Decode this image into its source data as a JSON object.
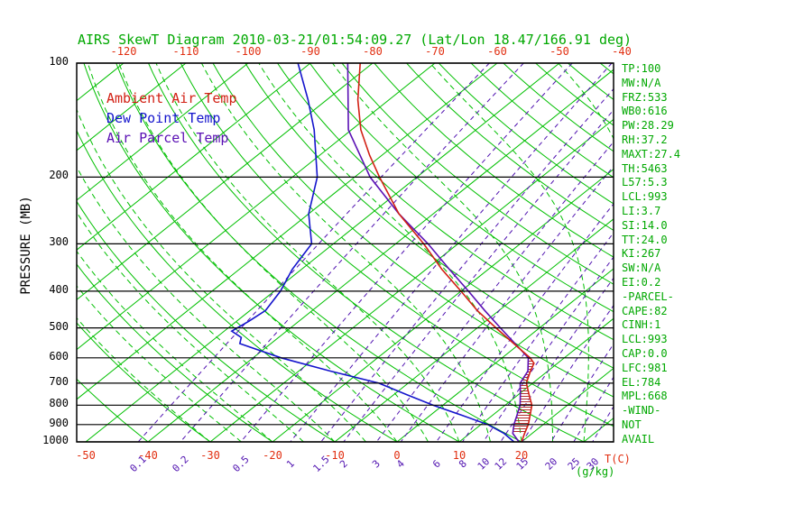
{
  "legend": {
    "ambient": "Ambient Air Temp",
    "dew": "Dew Point Temp",
    "parcel": "Air Parcel Temp"
  },
  "axis_units": {
    "temp": "T(C)",
    "mixing": "(g/kg)"
  },
  "stats": [
    "TP:100",
    "MW:N/A",
    "FRZ:533",
    "WB0:616",
    "PW:28.29",
    "RH:37.2",
    "MAXT:27.4",
    "TH:5463",
    "L57:5.3",
    "LCL:993",
    "LI:3.7",
    "SI:14.0",
    "TT:24.0",
    "KI:267",
    "SW:N/A",
    "EI:0.2",
    "-PARCEL-",
    "CAPE:82",
    "CINH:1",
    "LCL:993",
    "CAP:0.0",
    "LFC:981",
    "EL:784",
    "MPL:668",
    "-WIND-",
    "NOT",
    "AVAIL"
  ],
  "chart_data": {
    "type": "line",
    "variant": "skew-t-log-p",
    "title": "AIRS SkewT Diagram 2010-03-21/01:54:09.27 (Lat/Lon 18.47/166.91 deg)",
    "pressure_axis": {
      "label": "PRESSURE (MB)",
      "scale": "log",
      "range": [
        100,
        1000
      ],
      "ticks": [
        100,
        200,
        300,
        400,
        500,
        600,
        700,
        800,
        900,
        1000
      ]
    },
    "temp_axis": {
      "label": "T(C)",
      "top_ticks": [
        -120,
        -110,
        -100,
        -90,
        -80,
        -70,
        -60,
        -50,
        -40
      ],
      "bottom_ticks": [
        -50,
        -40,
        -30,
        -20,
        -10,
        0,
        10,
        20
      ]
    },
    "mixing_ratio_axis": {
      "label": "(g/kg)",
      "values": [
        0.1,
        0.2,
        0.5,
        1,
        1.5,
        2,
        3,
        4,
        6,
        8,
        10,
        12,
        15,
        20,
        25,
        30
      ]
    },
    "grid": {
      "isotherms": {
        "min": -120,
        "max": 40,
        "step": 10
      },
      "dry_adiabats": {
        "min": -40,
        "max": 190,
        "step": 10
      },
      "moist_adiabats": {
        "min": -30,
        "max": 40,
        "step": 5
      }
    },
    "colors": {
      "background": "#ffffff",
      "frame": "#000000",
      "grid": "#00bf00",
      "text_green": "#00a800",
      "text_red": "#e12e10",
      "text_black": "#000000",
      "ambient": "#d22014",
      "dew": "#1414cc",
      "parcel": "#5a10b4",
      "mixing": "#5012b0",
      "hatch": "#b23030"
    },
    "series": [
      {
        "key": "parcel",
        "name": "Air Parcel Temp",
        "color": "#5a10b4",
        "points": [
          [
            100,
            -84
          ],
          [
            150,
            -70.5
          ],
          [
            200,
            -57.5
          ],
          [
            250,
            -45.5
          ],
          [
            300,
            -34.8
          ],
          [
            350,
            -26.3
          ],
          [
            400,
            -18.8
          ],
          [
            450,
            -12.3
          ],
          [
            500,
            -6.3
          ],
          [
            550,
            -0.8
          ],
          [
            600,
            4.2
          ],
          [
            650,
            6.8
          ],
          [
            700,
            8
          ],
          [
            750,
            10.3
          ],
          [
            800,
            12.4
          ],
          [
            850,
            13.9
          ],
          [
            900,
            15.3
          ],
          [
            950,
            16.9
          ],
          [
            1000,
            19.6
          ]
        ]
      },
      {
        "key": "dew",
        "name": "Dew Point Temp",
        "color": "#1414cc",
        "points": [
          [
            100,
            -92
          ],
          [
            125,
            -83
          ],
          [
            150,
            -76
          ],
          [
            200,
            -66
          ],
          [
            250,
            -60
          ],
          [
            300,
            -53.5
          ],
          [
            350,
            -51.5
          ],
          [
            400,
            -49
          ],
          [
            450,
            -47.5
          ],
          [
            480,
            -48
          ],
          [
            510,
            -48.8
          ],
          [
            530,
            -46
          ],
          [
            550,
            -45
          ],
          [
            600,
            -35.5
          ],
          [
            650,
            -25
          ],
          [
            700,
            -14.7
          ],
          [
            750,
            -8
          ],
          [
            800,
            -1.6
          ],
          [
            850,
            5
          ],
          [
            900,
            11.1
          ],
          [
            950,
            15.5
          ],
          [
            1000,
            18.8
          ]
        ]
      },
      {
        "key": "ambient",
        "name": "Ambient Air Temp",
        "color": "#d22014",
        "points": [
          [
            100,
            -82
          ],
          [
            125,
            -75
          ],
          [
            150,
            -68.5
          ],
          [
            175,
            -62
          ],
          [
            200,
            -56
          ],
          [
            250,
            -45.5
          ],
          [
            300,
            -35.5
          ],
          [
            350,
            -27.5
          ],
          [
            400,
            -20
          ],
          [
            450,
            -13.5
          ],
          [
            500,
            -7
          ],
          [
            550,
            -1
          ],
          [
            600,
            4.5
          ],
          [
            620,
            6.2
          ],
          [
            650,
            7.2
          ],
          [
            700,
            9
          ],
          [
            750,
            11.7
          ],
          [
            800,
            14.3
          ],
          [
            850,
            16
          ],
          [
            900,
            17.6
          ],
          [
            950,
            18.8
          ],
          [
            1000,
            20
          ]
        ]
      }
    ],
    "hatch_region": {
      "between": [
        "parcel",
        "ambient"
      ],
      "pressure_top": 600,
      "pressure_bottom": 950
    }
  }
}
